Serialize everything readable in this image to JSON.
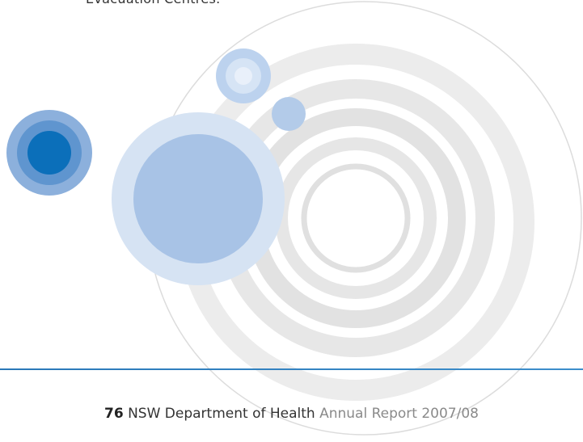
{
  "header": {
    "text": "Evacuation Centres."
  },
  "footer": {
    "page_number": "76",
    "organization": "NSW Department of Health",
    "report": "Annual Report 2007/08"
  }
}
